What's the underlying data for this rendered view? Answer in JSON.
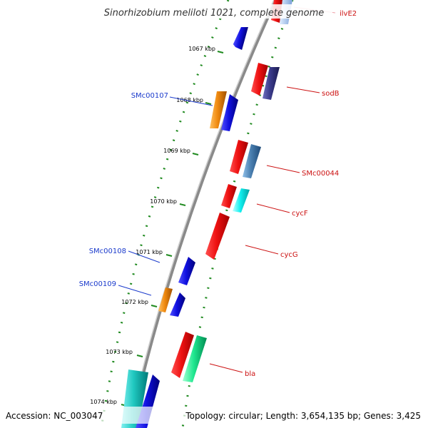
{
  "title": "Sinorhizobium meliloti 1021, complete genome",
  "footer": {
    "accession": "Accession: NC_003047",
    "topology": "Topology: circular; Length: 3,654,135 bp; Genes: 3,425"
  },
  "ruler": {
    "labels": [
      "1067 kbp",
      "1068 kbp",
      "1069 kbp",
      "1070 kbp",
      "1071 kbp",
      "1072 kbp",
      "1073 kbp",
      "1074 kbp"
    ]
  },
  "genes_reverse": [
    {
      "name": "SMc00107",
      "color": "#1a3acc"
    },
    {
      "name": "SMc00108",
      "color": "#1a3acc"
    },
    {
      "name": "SMc00109",
      "color": "#1a3acc"
    }
  ],
  "genes_forward": [
    {
      "name": "ilvE2",
      "color": "#cc1111"
    },
    {
      "name": "sodB",
      "color": "#cc1111"
    },
    {
      "name": "SMc00044",
      "color": "#cc1111"
    },
    {
      "name": "cycF",
      "color": "#cc1111"
    },
    {
      "name": "cycG",
      "color": "#cc1111"
    },
    {
      "name": "bla",
      "color": "#cc1111"
    }
  ],
  "colors": {
    "backbone": "#8a8a8a",
    "ticks": "#1f8a1f",
    "blue": "#1010e0",
    "orange": "#f08a10",
    "red": "#ee1111",
    "slate": "#3a3a8a",
    "steel": "#4a7fb0",
    "cyan": "#10f0f0",
    "teal": "#20c8c0",
    "seafoam": "#20e890",
    "pink": "#f0a0a8",
    "pale_blue": "#a8c8f0"
  }
}
